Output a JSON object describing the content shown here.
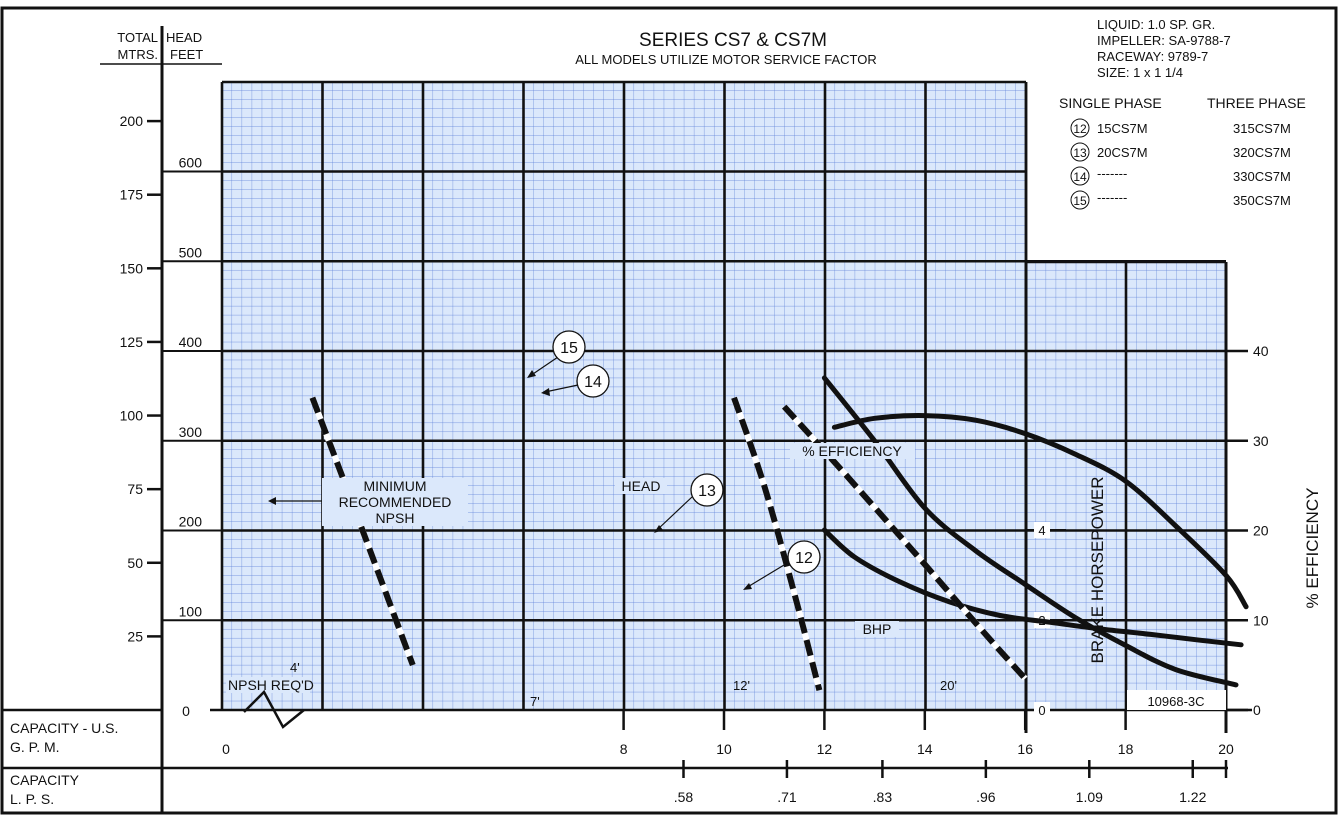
{
  "title": "SERIES  CS7 & CS7M",
  "subtitle": "ALL MODELS UTILIZE MOTOR SERVICE FACTOR",
  "specs": [
    "LIQUID: 1.0 SP. GR.",
    "IMPELLER: SA-9788-7",
    "RACEWAY: 9789-7",
    "SIZE:  1 x 1  1/4"
  ],
  "models": {
    "single_phase_header": "SINGLE PHASE",
    "three_phase_header": "THREE PHASE",
    "rows": [
      {
        "num": "12",
        "single": "15CS7M",
        "three": "315CS7M"
      },
      {
        "num": "13",
        "single": "20CS7M",
        "three": "320CS7M"
      },
      {
        "num": "14",
        "single": "-------",
        "three": "330CS7M"
      },
      {
        "num": "15",
        "single": "-------",
        "three": "350CS7M"
      }
    ]
  },
  "axis_headers": {
    "total_head": "TOTAL",
    "head": "HEAD",
    "mtrs": "MTRS.",
    "feet": "FEET"
  },
  "capacity_gpm_label": [
    "CAPACITY - U.S.",
    "G. P. M."
  ],
  "capacity_lps_label": [
    "CAPACITY",
    "L. P. S."
  ],
  "labels": {
    "bhp_axis": "BRAKE HORSEPOWER",
    "eff_axis": "% EFFICIENCY",
    "efficiency_curve": "% EFFICIENCY",
    "head_curve": "HEAD",
    "bhp_curve": "BHP",
    "npsh_note": [
      "MINIMUM",
      "RECOMMENDED",
      "NPSH"
    ],
    "npsh_reqd": "NPSH REQ'D",
    "npsh_4": "4'",
    "npsh_7": "7'",
    "npsh_12": "12'",
    "npsh_20": "20'",
    "chart_id": "10968-3C"
  },
  "chart_data": {
    "type": "line",
    "x": {
      "label": "CAPACITY - U.S. G. P. M.",
      "range": [
        0,
        22
      ],
      "ticks": [
        0,
        8,
        10,
        12,
        14,
        16,
        18,
        20
      ],
      "tick_labels": [
        "0",
        "8",
        "10",
        "12",
        "14",
        "16",
        "18",
        "20"
      ]
    },
    "x_lps": {
      "ticks": [
        0.58,
        0.71,
        0.83,
        0.96,
        1.09,
        1.22
      ],
      "tick_labels": [
        ".58",
        ".71",
        ".83",
        ".96",
        "1.09",
        "1.22"
      ]
    },
    "y_feet": {
      "range": [
        0,
        650
      ],
      "ticks": [
        0,
        100,
        200,
        300,
        400,
        500,
        600
      ],
      "tick_labels": [
        "0",
        "100",
        "200",
        "300",
        "400",
        "500",
        "600"
      ]
    },
    "y_meters": {
      "ticks": [
        25,
        50,
        75,
        100,
        125,
        150,
        175,
        200
      ],
      "tick_labels": [
        "25",
        "50",
        "75",
        "100",
        "125",
        "150",
        "175",
        "200"
      ]
    },
    "y_bhp": {
      "ticks": [
        0,
        2,
        4
      ],
      "tick_labels": [
        "0",
        "2",
        "4"
      ]
    },
    "y_efficiency": {
      "ticks": [
        0,
        10,
        20,
        30,
        40
      ],
      "tick_labels": [
        "0",
        "10",
        "20",
        "30",
        "40"
      ]
    },
    "series": [
      {
        "name": "HEAD",
        "unit": "ft",
        "x": [
          12,
          13,
          14,
          15,
          16,
          17,
          18,
          19,
          20.2
        ],
        "y": [
          370,
          300,
          225,
          178,
          140,
          103,
          72,
          45,
          28
        ]
      },
      {
        "name": "% EFFICIENCY",
        "unit": "%",
        "x": [
          12.2,
          13,
          14,
          15,
          16,
          17,
          18,
          19,
          20,
          20.4
        ],
        "y": [
          31.5,
          32.5,
          32.8,
          32.3,
          30.8,
          28.5,
          25.5,
          20.5,
          15,
          11.5
        ]
      },
      {
        "name": "BHP",
        "unit": "hp",
        "x": [
          12,
          12.6,
          13.5,
          14.5,
          15.5,
          16.5,
          17.5,
          18.5,
          19.5,
          20.3
        ],
        "y": [
          4.0,
          3.4,
          2.85,
          2.4,
          2.1,
          1.95,
          1.8,
          1.68,
          1.55,
          1.45
        ]
      },
      {
        "name": "NPSH 4'",
        "unit": "ft",
        "x": [
          1.8,
          2.6,
          3.3,
          3.8
        ],
        "y": [
          348,
          230,
          125,
          50
        ]
      },
      {
        "name": "NPSH 7'",
        "unit": "ft",
        "x": [
          10.2,
          10.8,
          11.4,
          11.9
        ],
        "y": [
          348,
          250,
          130,
          22
        ]
      },
      {
        "name": "NPSH 12'",
        "unit": "ft",
        "x": [
          11.2,
          12.3,
          13.8,
          15.2,
          16
        ],
        "y": [
          338,
          270,
          175,
          85,
          35
        ]
      }
    ],
    "curve_markers": [
      "12",
      "13",
      "14",
      "15"
    ],
    "grid": true
  }
}
